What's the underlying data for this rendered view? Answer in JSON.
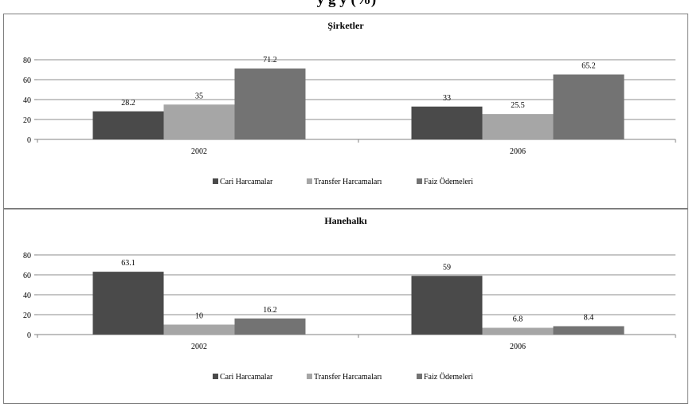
{
  "page": {
    "title_fragment": "y                                                  g   y   (%)"
  },
  "chart_data": [
    {
      "type": "bar",
      "title": "Şirketler",
      "categories": [
        "2002",
        "2006"
      ],
      "ylim": [
        0,
        80
      ],
      "yticks": [
        0,
        20,
        40,
        60,
        80
      ],
      "grid": true,
      "legend_position": "bottom",
      "series": [
        {
          "name": "Cari Harcamalar",
          "values": [
            28.2,
            33
          ],
          "labels": [
            "28.2",
            "33"
          ],
          "color": "#4a4a4a"
        },
        {
          "name": "Transfer Harcamaları",
          "values": [
            35,
            25.5
          ],
          "labels": [
            "35",
            "25.5"
          ],
          "color": "#a6a6a6"
        },
        {
          "name": "Faiz Ödemeleri",
          "values": [
            71.2,
            65.2
          ],
          "labels": [
            "71.2",
            "65.2"
          ],
          "color": "#737373"
        }
      ]
    },
    {
      "type": "bar",
      "title": "Hanehalkı",
      "categories": [
        "2002",
        "2006"
      ],
      "ylim": [
        0,
        80
      ],
      "yticks": [
        0,
        20,
        40,
        60,
        80
      ],
      "grid": true,
      "legend_position": "bottom",
      "series": [
        {
          "name": "Cari Harcamalar",
          "values": [
            63.1,
            59
          ],
          "labels": [
            "63.1",
            "59"
          ],
          "color": "#4a4a4a"
        },
        {
          "name": "Transfer Harcamaları",
          "values": [
            10,
            6.8
          ],
          "labels": [
            "10",
            "6.8"
          ],
          "color": "#a6a6a6"
        },
        {
          "name": "Faiz Ödemeleri",
          "values": [
            16.2,
            8.4
          ],
          "labels": [
            "16.2",
            "8.4"
          ],
          "color": "#737373"
        }
      ]
    }
  ]
}
